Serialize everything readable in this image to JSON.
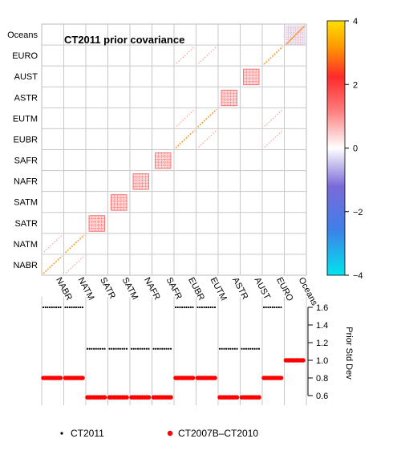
{
  "chart_data": [
    {
      "type": "heatmap",
      "title": "CT2011 prior covariance",
      "regions": [
        "NABR",
        "NATM",
        "SATR",
        "SATM",
        "NAFR",
        "SAFR",
        "EUBR",
        "EUTM",
        "ASTR",
        "AUST",
        "EURO",
        "Oceans"
      ],
      "y_order_top_to_bottom": [
        "Oceans",
        "EURO",
        "AUST",
        "ASTR",
        "EUTM",
        "EUBR",
        "SAFR",
        "NAFR",
        "SATM",
        "SATR",
        "NATM",
        "NABR"
      ],
      "colorbar": {
        "min": -4,
        "max": 4,
        "ticks": [
          "4",
          "2",
          "0",
          "−2",
          "−4"
        ],
        "tick_values": [
          4,
          2,
          0,
          -2,
          -4
        ],
        "colors": [
          "#00e5ee",
          "#6a6adf",
          "#ffffff",
          "#ff3b3b",
          "#ffd800"
        ]
      },
      "grid": true
    },
    {
      "type": "scatter",
      "ylabel": "Prior Std Dev",
      "ylim": [
        0.6,
        1.6
      ],
      "yticks": [
        "0.6",
        "0.8",
        "1.0",
        "1.2",
        "1.4",
        "1.6"
      ],
      "ytick_values": [
        0.6,
        0.8,
        1.0,
        1.2,
        1.4,
        1.6
      ],
      "categories": [
        "NABR",
        "NATM",
        "SATR",
        "SATM",
        "NAFR",
        "SAFR",
        "EUBR",
        "EUTM",
        "ASTR",
        "AUST",
        "EURO",
        "Oceans"
      ],
      "series": [
        {
          "name": "CT2011",
          "color": "#000000",
          "marker": "small-dot",
          "values": [
            1.6,
            1.6,
            1.13,
            1.13,
            1.13,
            1.13,
            1.6,
            1.6,
            1.13,
            1.13,
            1.6,
            1.0
          ]
        },
        {
          "name": "CT2007B–CT2010",
          "color": "#ff0000",
          "marker": "large-dot",
          "values": [
            0.8,
            0.8,
            0.58,
            0.58,
            0.58,
            0.58,
            0.8,
            0.8,
            0.58,
            0.58,
            0.8,
            1.0
          ]
        }
      ]
    }
  ]
}
